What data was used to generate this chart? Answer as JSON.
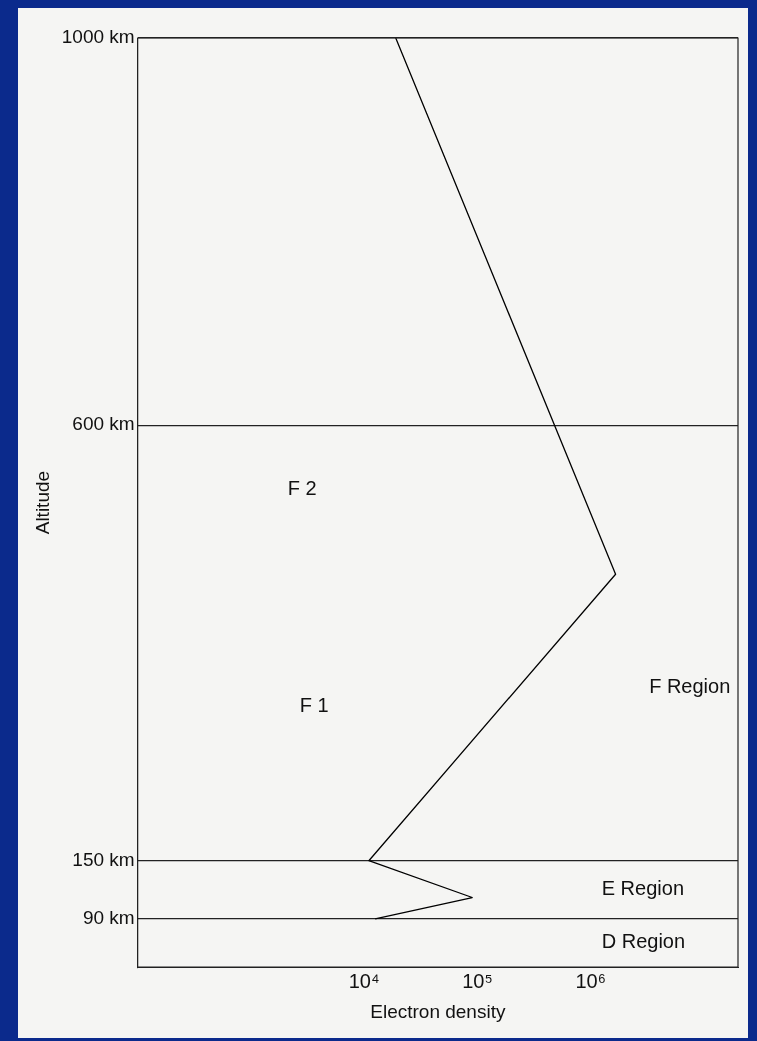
{
  "chart_data": {
    "type": "line",
    "xlabel": "Electron density",
    "ylabel": "Altitude",
    "x": [
      12500,
      90000,
      11000,
      1660000,
      19000
    ],
    "values": [
      90,
      112,
      150,
      446,
      1000
    ],
    "color": "#000000",
    "marker": "none",
    "line_style": "solid",
    "log": "x",
    "grid": "y",
    "xlim": [
      100,
      20000000
    ],
    "xticks": [
      {
        "value": 10000,
        "label": "10⁴"
      },
      {
        "value": 100000,
        "label": "10⁵"
      },
      {
        "value": 1000000,
        "label": "10⁶"
      }
    ],
    "ylim": [
      40,
      1000
    ],
    "yticks": [
      {
        "value": 90,
        "label": "90 km"
      },
      {
        "value": 150,
        "label": "150 km"
      },
      {
        "value": 600,
        "label": "600 km"
      },
      {
        "value": 1000,
        "label": "1000 km"
      }
    ],
    "annotations": [
      "F 2",
      "F 1",
      "F Region",
      "E Region",
      "D Region"
    ]
  }
}
